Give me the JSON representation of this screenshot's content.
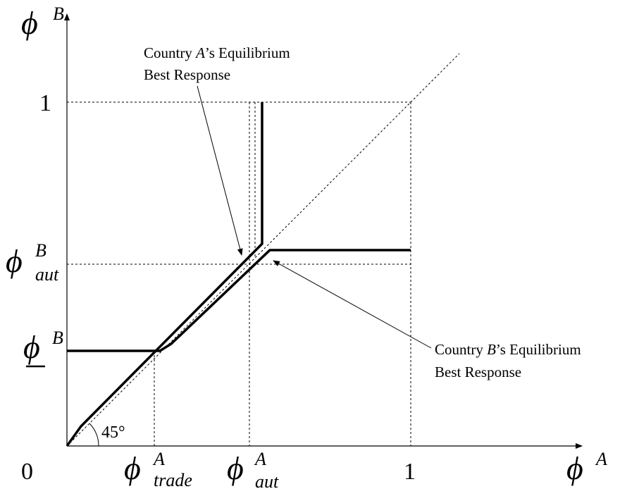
{
  "axes": {
    "y_label": {
      "symbol": "ϕ",
      "sup": "B"
    },
    "x_label": {
      "symbol": "ϕ",
      "sup": "A"
    }
  },
  "y_ticks": [
    {
      "label": "1"
    },
    {
      "symbol": "ϕ",
      "sup": "B",
      "sub": "aut"
    },
    {
      "symbol": "ϕ",
      "sup": "B"
    }
  ],
  "x_ticks": [
    {
      "label": "0"
    },
    {
      "symbol": "ϕ",
      "sup": "A",
      "sub": "trade"
    },
    {
      "symbol": "ϕ",
      "sup": "A",
      "sub": "aut"
    },
    {
      "label": "1"
    }
  ],
  "angle_label": "45°",
  "annotations": [
    {
      "parts": [
        "Country ",
        "A",
        "’s Equilibrium"
      ],
      "line2": "Best Response"
    },
    {
      "parts": [
        "Country ",
        "B",
        "’s Equilibrium"
      ],
      "line2": "Best Response"
    }
  ]
}
